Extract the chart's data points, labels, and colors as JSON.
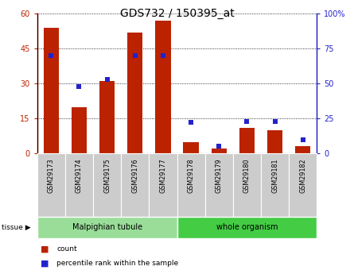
{
  "title": "GDS732 / 150395_at",
  "samples": [
    "GSM29173",
    "GSM29174",
    "GSM29175",
    "GSM29176",
    "GSM29177",
    "GSM29178",
    "GSM29179",
    "GSM29180",
    "GSM29181",
    "GSM29182"
  ],
  "counts": [
    54,
    20,
    31,
    52,
    57,
    5,
    2,
    11,
    10,
    3
  ],
  "percentiles": [
    70,
    48,
    53,
    70,
    70,
    22,
    5,
    23,
    23,
    10
  ],
  "ylim_left": [
    0,
    60
  ],
  "ylim_right": [
    0,
    100
  ],
  "yticks_left": [
    0,
    15,
    30,
    45,
    60
  ],
  "yticks_right": [
    0,
    25,
    50,
    75,
    100
  ],
  "bar_color": "#bb2200",
  "dot_color": "#2222cc",
  "tissue_groups": [
    {
      "label": "Malpighian tubule",
      "start": 0,
      "end": 5,
      "color": "#99dd99"
    },
    {
      "label": "whole organism",
      "start": 5,
      "end": 10,
      "color": "#44cc44"
    }
  ],
  "tissue_label": "tissue",
  "legend_count_label": "count",
  "legend_pct_label": "percentile rank within the sample",
  "title_fontsize": 10,
  "tick_fontsize": 7,
  "label_fontsize": 7.5
}
